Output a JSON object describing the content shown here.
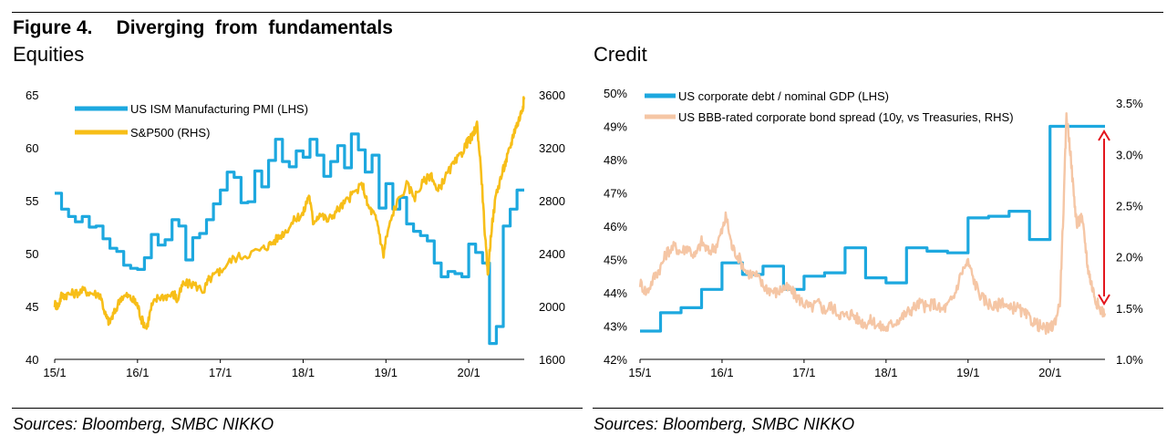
{
  "figure": {
    "label": "Figure 4.",
    "title": "Diverging  from  fundamentals"
  },
  "sources_left": "Sources: Bloomberg, SMBC NIKKO",
  "sources_right": "Sources: Bloomberg, SMBC NIKKO",
  "colors": {
    "blue": "#1da8df",
    "gold": "#f7be18",
    "peach": "#f5c6a5",
    "red": "#e3161d",
    "axis": "#000000"
  },
  "chart_data": [
    {
      "type": "line",
      "title": "Equities",
      "x_ticks": [
        "15/1",
        "16/1",
        "17/1",
        "18/1",
        "19/1",
        "20/1"
      ],
      "x_range": [
        2015.0,
        2020.67
      ],
      "y_left": {
        "ticks": [
          40,
          45,
          50,
          55,
          60,
          65
        ],
        "range": [
          40,
          65
        ]
      },
      "y_right": {
        "ticks": [
          1600,
          2000,
          2400,
          2800,
          3200,
          3600
        ],
        "range": [
          1600,
          3600
        ]
      },
      "legend_position": "top-left",
      "series": [
        {
          "name": "US ISM Manufacturing PMI (LHS)",
          "axis": "left",
          "color": "blue",
          "step": true,
          "points": [
            [
              2015.0,
              55.7
            ],
            [
              2015.083,
              54.2
            ],
            [
              2015.167,
              53.5
            ],
            [
              2015.25,
              53.0
            ],
            [
              2015.333,
              53.5
            ],
            [
              2015.417,
              52.5
            ],
            [
              2015.5,
              52.6
            ],
            [
              2015.583,
              51.4
            ],
            [
              2015.667,
              50.5
            ],
            [
              2015.75,
              50.2
            ],
            [
              2015.833,
              48.9
            ],
            [
              2015.917,
              48.6
            ],
            [
              2016.0,
              48.5
            ],
            [
              2016.083,
              49.6
            ],
            [
              2016.167,
              51.8
            ],
            [
              2016.25,
              50.8
            ],
            [
              2016.333,
              51.3
            ],
            [
              2016.417,
              53.2
            ],
            [
              2016.5,
              52.6
            ],
            [
              2016.583,
              49.4
            ],
            [
              2016.667,
              51.5
            ],
            [
              2016.75,
              51.9
            ],
            [
              2016.833,
              53.2
            ],
            [
              2016.917,
              54.7
            ],
            [
              2017.0,
              56.0
            ],
            [
              2017.083,
              57.7
            ],
            [
              2017.167,
              57.2
            ],
            [
              2017.25,
              54.8
            ],
            [
              2017.333,
              54.9
            ],
            [
              2017.417,
              57.8
            ],
            [
              2017.5,
              56.3
            ],
            [
              2017.583,
              58.8
            ],
            [
              2017.667,
              60.8
            ],
            [
              2017.75,
              58.7
            ],
            [
              2017.833,
              58.2
            ],
            [
              2017.917,
              59.7
            ],
            [
              2018.0,
              59.1
            ],
            [
              2018.083,
              60.8
            ],
            [
              2018.167,
              59.3
            ],
            [
              2018.25,
              57.3
            ],
            [
              2018.333,
              58.7
            ],
            [
              2018.417,
              60.2
            ],
            [
              2018.5,
              58.1
            ],
            [
              2018.583,
              61.3
            ],
            [
              2018.667,
              59.8
            ],
            [
              2018.75,
              57.7
            ],
            [
              2018.833,
              59.3
            ],
            [
              2018.917,
              54.3
            ],
            [
              2019.0,
              56.6
            ],
            [
              2019.083,
              54.2
            ],
            [
              2019.167,
              55.3
            ],
            [
              2019.25,
              52.8
            ],
            [
              2019.333,
              52.1
            ],
            [
              2019.417,
              51.7
            ],
            [
              2019.5,
              51.2
            ],
            [
              2019.583,
              49.1
            ],
            [
              2019.667,
              47.8
            ],
            [
              2019.75,
              48.3
            ],
            [
              2019.833,
              48.1
            ],
            [
              2019.917,
              47.8
            ],
            [
              2020.0,
              50.9
            ],
            [
              2020.083,
              50.1
            ],
            [
              2020.167,
              49.1
            ],
            [
              2020.25,
              41.5
            ],
            [
              2020.333,
              43.1
            ],
            [
              2020.417,
              52.6
            ],
            [
              2020.5,
              54.2
            ],
            [
              2020.583,
              56.0
            ]
          ]
        },
        {
          "name": "S&P500 (RHS)",
          "axis": "right",
          "color": "gold",
          "step": false,
          "points": [
            [
              2015.0,
              2020
            ],
            [
              2015.04,
              2000
            ],
            [
              2015.08,
              2080
            ],
            [
              2015.15,
              2090
            ],
            [
              2015.25,
              2100
            ],
            [
              2015.35,
              2120
            ],
            [
              2015.45,
              2100
            ],
            [
              2015.55,
              2090
            ],
            [
              2015.62,
              1920
            ],
            [
              2015.66,
              1880
            ],
            [
              2015.72,
              1950
            ],
            [
              2015.8,
              2070
            ],
            [
              2015.88,
              2080
            ],
            [
              2015.96,
              2040
            ],
            [
              2016.0,
              2010
            ],
            [
              2016.05,
              1900
            ],
            [
              2016.11,
              1840
            ],
            [
              2016.17,
              2000
            ],
            [
              2016.25,
              2070
            ],
            [
              2016.35,
              2080
            ],
            [
              2016.45,
              2090
            ],
            [
              2016.48,
              2040
            ],
            [
              2016.55,
              2170
            ],
            [
              2016.67,
              2170
            ],
            [
              2016.8,
              2120
            ],
            [
              2016.86,
              2200
            ],
            [
              2016.96,
              2250
            ],
            [
              2017.0,
              2270
            ],
            [
              2017.15,
              2360
            ],
            [
              2017.3,
              2390
            ],
            [
              2017.5,
              2430
            ],
            [
              2017.6,
              2470
            ],
            [
              2017.7,
              2520
            ],
            [
              2017.8,
              2580
            ],
            [
              2017.92,
              2670
            ],
            [
              2018.0,
              2700
            ],
            [
              2018.07,
              2850
            ],
            [
              2018.12,
              2640
            ],
            [
              2018.2,
              2700
            ],
            [
              2018.3,
              2650
            ],
            [
              2018.4,
              2720
            ],
            [
              2018.5,
              2780
            ],
            [
              2018.6,
              2850
            ],
            [
              2018.72,
              2920
            ],
            [
              2018.78,
              2760
            ],
            [
              2018.85,
              2700
            ],
            [
              2018.9,
              2630
            ],
            [
              2018.97,
              2380
            ],
            [
              2019.0,
              2510
            ],
            [
              2019.1,
              2740
            ],
            [
              2019.25,
              2920
            ],
            [
              2019.35,
              2830
            ],
            [
              2019.45,
              2940
            ],
            [
              2019.55,
              3000
            ],
            [
              2019.62,
              2860
            ],
            [
              2019.7,
              2960
            ],
            [
              2019.8,
              3060
            ],
            [
              2019.9,
              3140
            ],
            [
              2019.97,
              3230
            ],
            [
              2020.0,
              3250
            ],
            [
              2020.05,
              3290
            ],
            [
              2020.1,
              3380
            ],
            [
              2020.15,
              3020
            ],
            [
              2020.2,
              2500
            ],
            [
              2020.23,
              2240
            ],
            [
              2020.27,
              2560
            ],
            [
              2020.33,
              2850
            ],
            [
              2020.4,
              3000
            ],
            [
              2020.45,
              3100
            ],
            [
              2020.5,
              3200
            ],
            [
              2020.55,
              3330
            ],
            [
              2020.6,
              3400
            ],
            [
              2020.65,
              3500
            ],
            [
              2020.67,
              3580
            ]
          ]
        }
      ]
    },
    {
      "type": "line",
      "title": "Credit",
      "x_ticks": [
        "15/1",
        "16/1",
        "17/1",
        "18/1",
        "19/1",
        "20/1"
      ],
      "x_range": [
        2015.0,
        2020.67
      ],
      "y_left": {
        "ticks": [
          "42%",
          "43%",
          "44%",
          "45%",
          "46%",
          "47%",
          "48%",
          "49%",
          "50%"
        ],
        "range": [
          42,
          50
        ]
      },
      "y_right": {
        "ticks": [
          "1.0%",
          "1.5%",
          "2.0%",
          "2.5%",
          "3.0%",
          "3.5%"
        ],
        "range": [
          1.0,
          3.6
        ]
      },
      "legend_position": "top-left",
      "annotation": "red double-headed arrow spanning the 2020 spread drop",
      "series": [
        {
          "name": "US corporate debt / nominal GDP (LHS)",
          "axis": "left",
          "color": "blue",
          "step": true,
          "points": [
            [
              2015.0,
              42.85
            ],
            [
              2015.25,
              43.4
            ],
            [
              2015.5,
              43.55
            ],
            [
              2015.75,
              44.1
            ],
            [
              2016.0,
              44.9
            ],
            [
              2016.25,
              44.55
            ],
            [
              2016.5,
              44.8
            ],
            [
              2016.75,
              44.1
            ],
            [
              2017.0,
              44.5
            ],
            [
              2017.25,
              44.6
            ],
            [
              2017.5,
              45.35
            ],
            [
              2017.75,
              44.45
            ],
            [
              2018.0,
              44.3
            ],
            [
              2018.25,
              45.35
            ],
            [
              2018.5,
              45.25
            ],
            [
              2018.75,
              45.2
            ],
            [
              2019.0,
              46.25
            ],
            [
              2019.25,
              46.3
            ],
            [
              2019.5,
              46.45
            ],
            [
              2019.75,
              45.6
            ],
            [
              2020.0,
              49.0
            ],
            [
              2020.25,
              49.0
            ]
          ]
        },
        {
          "name": "US BBB-rated corporate bond spread (10y, vs Treasuries, RHS)",
          "axis": "right",
          "color": "peach",
          "step": false,
          "points": [
            [
              2015.0,
              1.75
            ],
            [
              2015.08,
              1.65
            ],
            [
              2015.17,
              1.8
            ],
            [
              2015.25,
              1.9
            ],
            [
              2015.33,
              2.05
            ],
            [
              2015.42,
              2.1
            ],
            [
              2015.5,
              2.05
            ],
            [
              2015.58,
              2.1
            ],
            [
              2015.67,
              2.0
            ],
            [
              2015.75,
              2.15
            ],
            [
              2015.83,
              2.05
            ],
            [
              2015.92,
              2.1
            ],
            [
              2016.0,
              2.25
            ],
            [
              2016.05,
              2.4
            ],
            [
              2016.12,
              2.1
            ],
            [
              2016.2,
              2.0
            ],
            [
              2016.3,
              1.85
            ],
            [
              2016.42,
              1.82
            ],
            [
              2016.5,
              1.72
            ],
            [
              2016.58,
              1.68
            ],
            [
              2016.67,
              1.65
            ],
            [
              2016.75,
              1.7
            ],
            [
              2016.83,
              1.68
            ],
            [
              2016.92,
              1.6
            ],
            [
              2017.0,
              1.55
            ],
            [
              2017.08,
              1.5
            ],
            [
              2017.17,
              1.55
            ],
            [
              2017.25,
              1.48
            ],
            [
              2017.33,
              1.52
            ],
            [
              2017.42,
              1.45
            ],
            [
              2017.5,
              1.42
            ],
            [
              2017.58,
              1.45
            ],
            [
              2017.67,
              1.38
            ],
            [
              2017.75,
              1.35
            ],
            [
              2017.83,
              1.38
            ],
            [
              2017.92,
              1.32
            ],
            [
              2018.0,
              1.3
            ],
            [
              2018.08,
              1.35
            ],
            [
              2018.17,
              1.4
            ],
            [
              2018.25,
              1.45
            ],
            [
              2018.33,
              1.5
            ],
            [
              2018.42,
              1.55
            ],
            [
              2018.5,
              1.5
            ],
            [
              2018.58,
              1.55
            ],
            [
              2018.67,
              1.48
            ],
            [
              2018.75,
              1.52
            ],
            [
              2018.83,
              1.62
            ],
            [
              2018.92,
              1.85
            ],
            [
              2019.0,
              1.95
            ],
            [
              2019.08,
              1.75
            ],
            [
              2019.17,
              1.6
            ],
            [
              2019.25,
              1.55
            ],
            [
              2019.33,
              1.5
            ],
            [
              2019.42,
              1.58
            ],
            [
              2019.5,
              1.48
            ],
            [
              2019.58,
              1.52
            ],
            [
              2019.67,
              1.45
            ],
            [
              2019.75,
              1.4
            ],
            [
              2019.83,
              1.35
            ],
            [
              2019.92,
              1.3
            ],
            [
              2020.0,
              1.3
            ],
            [
              2020.05,
              1.35
            ],
            [
              2020.12,
              1.55
            ],
            [
              2020.17,
              2.6
            ],
            [
              2020.2,
              3.4
            ],
            [
              2020.24,
              3.1
            ],
            [
              2020.29,
              2.6
            ],
            [
              2020.33,
              2.3
            ],
            [
              2020.38,
              2.4
            ],
            [
              2020.42,
              2.2
            ],
            [
              2020.46,
              1.9
            ],
            [
              2020.5,
              1.75
            ],
            [
              2020.55,
              1.6
            ],
            [
              2020.6,
              1.5
            ],
            [
              2020.67,
              1.45
            ]
          ]
        }
      ]
    }
  ]
}
